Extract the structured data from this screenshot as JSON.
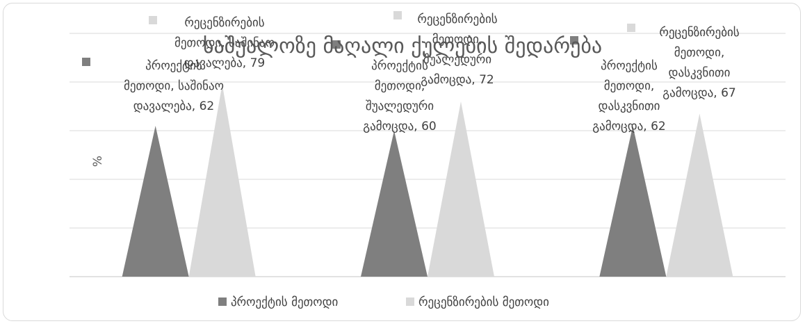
{
  "chart_data": {
    "type": "bar",
    "title": "საშუალოზე მაღალი ქულების შედარება",
    "ylabel": "%",
    "xlabel": "",
    "ylim": [
      0,
      100
    ],
    "grid": true,
    "legend_position": "bottom",
    "categories": [
      "საშინაო დავალება",
      "შუალედური გამოცდა",
      "დასკვნითი გამოცდა"
    ],
    "series": [
      {
        "name": "პროექტის მეთოდი",
        "color": "#7f7f7f",
        "values": [
          62,
          60,
          62
        ],
        "labels": [
          [
            "პროექტის",
            "მეთოდი, საშინაო",
            "დავალება, 62"
          ],
          [
            "პროექტის",
            "მეთოდი,",
            "შუალედური",
            "გამოცდა, 60"
          ],
          [
            "პროექტის",
            "მეთოდი,",
            "დასკვნითი",
            "გამოცდა, 62"
          ]
        ]
      },
      {
        "name": "რეცენზირების მეთოდი",
        "color": "#d9d9d9",
        "values": [
          79,
          72,
          67
        ],
        "labels": [
          [
            "რეცენზირების",
            "მეთოდი, საშინაო",
            "დავალება, 79"
          ],
          [
            "რეცენზირების",
            "მეთოდი,",
            "შუალედური",
            "გამოცდა, 72"
          ],
          [
            "რეცენზირების",
            "მეთოდი,",
            "დასკვნითი",
            "გამოცდა, 67"
          ]
        ]
      }
    ]
  }
}
